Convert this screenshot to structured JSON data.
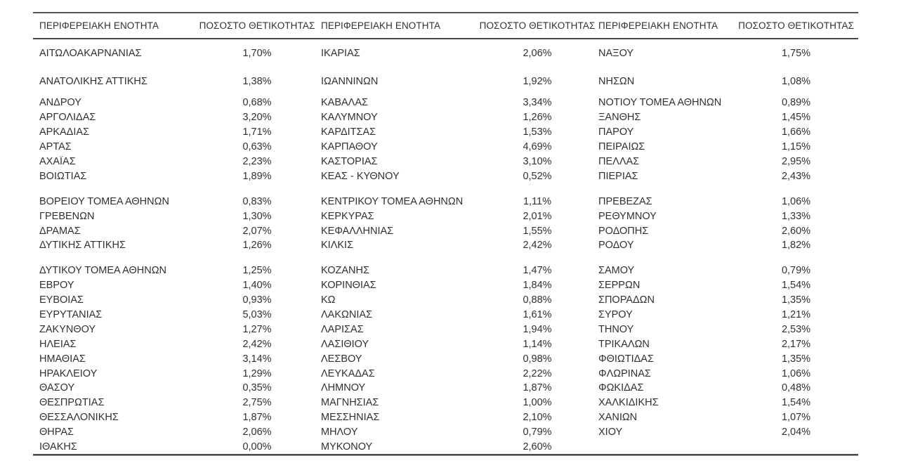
{
  "table": {
    "column_pairs": [
      {
        "region_header": "ΠΕΡΙΦΕΡΕΙΑΚΗ ΕΝΟΤΗΤΑ",
        "value_header": "ΠΟΣΟΣΤΟ ΘΕΤΙΚΟΤΗΤΑΣ"
      },
      {
        "region_header": "ΠΕΡΙΦΕΡΕΙΑΚΗ ΕΝΟΤΗΤΑ",
        "value_header": "ΠΟΣΟΣΤΟ ΘΕΤΙΚΟΤΗΤΑΣ"
      },
      {
        "region_header": "ΠΕΡΙΦΕΡΕΙΑΚΗ ΕΝΟΤΗΤΑ",
        "value_header": "ΠΟΣΟΣΤΟ ΘΕΤΙΚΟΤΗΤΑΣ"
      }
    ],
    "rows": [
      [
        "ΑΙΤΩΛΟΑΚΑΡΝΑΝΙΑΣ",
        "1,70%",
        "ΙΚΑΡΙΑΣ",
        "2,06%",
        "ΝΑΞΟΥ",
        "1,75%"
      ],
      [
        "ΑΝΑΤΟΛΙΚΗΣ ΑΤΤΙΚΗΣ",
        "1,38%",
        "ΙΩΑΝΝΙΝΩΝ",
        "1,92%",
        "ΝΗΣΩΝ",
        "1,08%"
      ],
      [
        "ΑΝΔΡΟΥ",
        "0,68%",
        "ΚΑΒΑΛΑΣ",
        "3,34%",
        "ΝΟΤΙΟΥ ΤΟΜΕΑ ΑΘΗΝΩΝ",
        "0,89%"
      ],
      [
        "ΑΡΓΟΛΙΔΑΣ",
        "3,20%",
        "ΚΑΛΥΜΝΟΥ",
        "1,26%",
        "ΞΑΝΘΗΣ",
        "1,45%"
      ],
      [
        "ΑΡΚΑΔΙΑΣ",
        "1,71%",
        "ΚΑΡΔΙΤΣΑΣ",
        "1,53%",
        "ΠΑΡΟΥ",
        "1,66%"
      ],
      [
        "ΑΡΤΑΣ",
        "0,63%",
        "ΚΑΡΠΑΘΟΥ",
        "4,69%",
        "ΠΕΙΡΑΙΩΣ",
        "1,15%"
      ],
      [
        "ΑΧΑΪΑΣ",
        "2,23%",
        "ΚΑΣΤΟΡΙΑΣ",
        "3,10%",
        "ΠΕΛΛΑΣ",
        "2,95%"
      ],
      [
        "ΒΟΙΩΤΙΑΣ",
        "1,89%",
        "ΚΕΑΣ - ΚΥΘΝΟΥ",
        "0,52%",
        "ΠΙΕΡΙΑΣ",
        "2,43%"
      ],
      [
        "ΒΟΡΕΙΟΥ ΤΟΜΕΑ ΑΘΗΝΩΝ",
        "0,83%",
        "ΚΕΝΤΡΙΚΟΥ ΤΟΜΕΑ ΑΘΗΝΩΝ",
        "1,11%",
        "ΠΡΕΒΕΖΑΣ",
        "1,06%"
      ],
      [
        "ΓΡΕΒΕΝΩΝ",
        "1,30%",
        "ΚΕΡΚΥΡΑΣ",
        "2,01%",
        "ΡΕΘΥΜΝΟΥ",
        "1,33%"
      ],
      [
        "ΔΡΑΜΑΣ",
        "2,07%",
        "ΚΕΦΑΛΛΗΝΙΑΣ",
        "1,55%",
        "ΡΟΔΟΠΗΣ",
        "2,60%"
      ],
      [
        "ΔΥΤΙΚΗΣ ΑΤΤΙΚΗΣ",
        "1,26%",
        "ΚΙΛΚΙΣ",
        "2,42%",
        "ΡΟΔΟΥ",
        "1,82%"
      ],
      [
        "ΔΥΤΙΚΟΥ ΤΟΜΕΑ ΑΘΗΝΩΝ",
        "1,25%",
        "ΚΟΖΑΝΗΣ",
        "1,47%",
        "ΣΑΜΟΥ",
        "0,79%"
      ],
      [
        "ΕΒΡΟΥ",
        "1,40%",
        "ΚΟΡΙΝΘΙΑΣ",
        "1,84%",
        "ΣΕΡΡΩΝ",
        "1,54%"
      ],
      [
        "ΕΥΒΟΙΑΣ",
        "0,93%",
        "ΚΩ",
        "0,88%",
        "ΣΠΟΡΑΔΩΝ",
        "1,35%"
      ],
      [
        "ΕΥΡΥΤΑΝΙΑΣ",
        "5,03%",
        "ΛΑΚΩΝΙΑΣ",
        "1,61%",
        "ΣΥΡΟΥ",
        "1,21%"
      ],
      [
        "ΖΑΚΥΝΘΟΥ",
        "1,27%",
        "ΛΑΡΙΣΑΣ",
        "1,94%",
        "ΤΗΝΟΥ",
        "2,53%"
      ],
      [
        "ΗΛΕΙΑΣ",
        "2,42%",
        "ΛΑΣΙΘΙΟΥ",
        "1,14%",
        "ΤΡΙΚΑΛΩΝ",
        "2,17%"
      ],
      [
        "ΗΜΑΘΙΑΣ",
        "3,14%",
        "ΛΕΣΒΟΥ",
        "0,98%",
        "ΦΘΙΩΤΙΔΑΣ",
        "1,35%"
      ],
      [
        "ΗΡΑΚΛΕΙΟΥ",
        "1,29%",
        "ΛΕΥΚΑΔΑΣ",
        "2,22%",
        "ΦΛΩΡΙΝΑΣ",
        "1,06%"
      ],
      [
        "ΘΑΣΟΥ",
        "0,35%",
        "ΛΗΜΝΟΥ",
        "1,87%",
        "ΦΩΚΙΔΑΣ",
        "0,48%"
      ],
      [
        "ΘΕΣΠΡΩΤΙΑΣ",
        "2,75%",
        "ΜΑΓΝΗΣΙΑΣ",
        "1,00%",
        "ΧΑΛΚΙΔΙΚΗΣ",
        "1,54%"
      ],
      [
        "ΘΕΣΣΑΛΟΝΙΚΗΣ",
        "1,87%",
        "ΜΕΣΣΗΝΙΑΣ",
        "2,10%",
        "ΧΑΝΙΩΝ",
        "1,07%"
      ],
      [
        "ΘΗΡΑΣ",
        "2,06%",
        "ΜΗΛΟΥ",
        "0,79%",
        "ΧΙΟΥ",
        "2,04%"
      ],
      [
        "ΙΘΑΚΗΣ",
        "0,00%",
        "ΜΥΚΟΝΟΥ",
        "2,60%",
        "",
        ""
      ]
    ]
  },
  "colors": {
    "text": "#303030",
    "rule_dark": "#4a4a4a",
    "rule_shadow": "#9d9d9d",
    "background": "#ffffff"
  }
}
